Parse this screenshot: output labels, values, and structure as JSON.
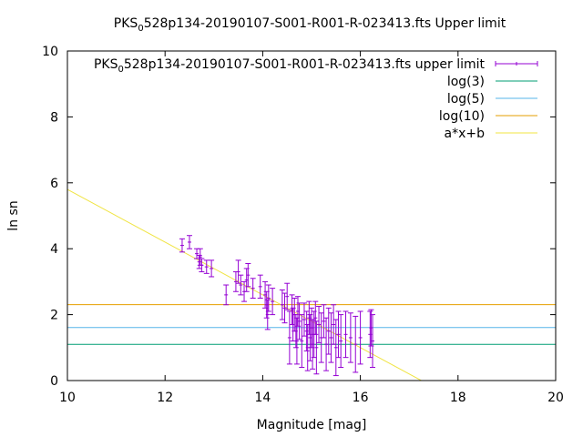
{
  "chart_data": {
    "type": "scatter",
    "title": {
      "prefix": "PKS",
      "subscript": "0",
      "suffix": "528p134-20190107-S001-R001-R-023413.fts Upper limit"
    },
    "xlabel": "Magnitude [mag]",
    "ylabel": "ln sn",
    "xlim": [
      10,
      20
    ],
    "ylim": [
      0,
      10
    ],
    "xticks": [
      "10",
      "12",
      "14",
      "16",
      "18",
      "20"
    ],
    "yticks": [
      "0",
      "2",
      "4",
      "6",
      "8",
      "10"
    ],
    "grid": false,
    "legend_placement": "top-right",
    "series": [
      {
        "name": {
          "prefix": "PKS",
          "subscript": "0",
          "suffix": "528p134-20190107-S001-R001-R-023413.fts upper limit"
        },
        "kind": "errorbars",
        "color": "#9400d3",
        "points": [
          [
            12.35,
            4.1,
            0.2
          ],
          [
            12.5,
            4.2,
            0.2
          ],
          [
            12.65,
            3.85,
            0.15
          ],
          [
            12.7,
            3.6,
            0.2
          ],
          [
            12.72,
            3.75,
            0.25
          ],
          [
            12.75,
            3.5,
            0.2
          ],
          [
            12.85,
            3.45,
            0.2
          ],
          [
            12.95,
            3.4,
            0.25
          ],
          [
            13.25,
            2.6,
            0.3
          ],
          [
            13.45,
            3.0,
            0.3
          ],
          [
            13.5,
            3.3,
            0.35
          ],
          [
            13.55,
            2.9,
            0.3
          ],
          [
            13.62,
            2.7,
            0.3
          ],
          [
            13.67,
            3.05,
            0.35
          ],
          [
            13.7,
            3.2,
            0.35
          ],
          [
            13.8,
            2.8,
            0.3
          ],
          [
            13.95,
            2.85,
            0.35
          ],
          [
            14.05,
            2.6,
            0.4
          ],
          [
            14.08,
            2.3,
            0.4
          ],
          [
            14.1,
            2.0,
            0.45
          ],
          [
            14.12,
            2.5,
            0.4
          ],
          [
            14.2,
            2.4,
            0.4
          ],
          [
            14.4,
            2.3,
            0.45
          ],
          [
            14.45,
            2.2,
            0.45
          ],
          [
            14.5,
            2.55,
            0.4
          ],
          [
            14.55,
            1.3,
            0.8
          ],
          [
            14.6,
            2.15,
            0.45
          ],
          [
            14.62,
            1.7,
            0.5
          ],
          [
            14.65,
            2.0,
            0.5
          ],
          [
            14.68,
            1.5,
            0.5
          ],
          [
            14.7,
            1.2,
            0.7
          ],
          [
            14.72,
            2.1,
            0.45
          ],
          [
            14.75,
            1.8,
            0.55
          ],
          [
            14.8,
            1.2,
            0.8
          ],
          [
            14.85,
            1.85,
            0.5
          ],
          [
            14.9,
            1.5,
            0.6
          ],
          [
            14.92,
            1.0,
            0.7
          ],
          [
            14.95,
            1.9,
            0.5
          ],
          [
            14.97,
            1.3,
            0.7
          ],
          [
            15.0,
            1.6,
            0.6
          ],
          [
            15.02,
            1.1,
            0.75
          ],
          [
            15.05,
            1.4,
            0.7
          ],
          [
            15.08,
            1.9,
            0.5
          ],
          [
            15.1,
            1.0,
            0.8
          ],
          [
            15.15,
            1.7,
            0.55
          ],
          [
            15.2,
            1.3,
            0.75
          ],
          [
            15.25,
            1.8,
            0.5
          ],
          [
            15.3,
            1.1,
            0.8
          ],
          [
            15.35,
            1.5,
            0.7
          ],
          [
            15.4,
            1.3,
            0.75
          ],
          [
            15.45,
            1.7,
            0.6
          ],
          [
            15.5,
            1.0,
            0.85
          ],
          [
            15.55,
            1.4,
            0.7
          ],
          [
            15.6,
            1.2,
            0.8
          ],
          [
            15.7,
            1.4,
            0.7
          ],
          [
            15.8,
            1.3,
            0.75
          ],
          [
            15.9,
            1.1,
            0.85
          ],
          [
            16.0,
            1.3,
            0.8
          ],
          [
            16.2,
            1.4,
            0.7
          ],
          [
            16.22,
            1.6,
            0.55
          ],
          [
            16.25,
            1.2,
            0.8
          ]
        ]
      },
      {
        "name": "log(3)",
        "kind": "hline",
        "y": 1.0986,
        "color": "#009e73"
      },
      {
        "name": "log(5)",
        "kind": "hline",
        "y": 1.6094,
        "color": "#56b4e9"
      },
      {
        "name": "log(10)",
        "kind": "hline",
        "y": 2.3026,
        "color": "#e69f00"
      },
      {
        "name": "a*x+b",
        "kind": "fit",
        "a": -0.8,
        "b": 13.8,
        "color": "#f0e442"
      }
    ]
  }
}
